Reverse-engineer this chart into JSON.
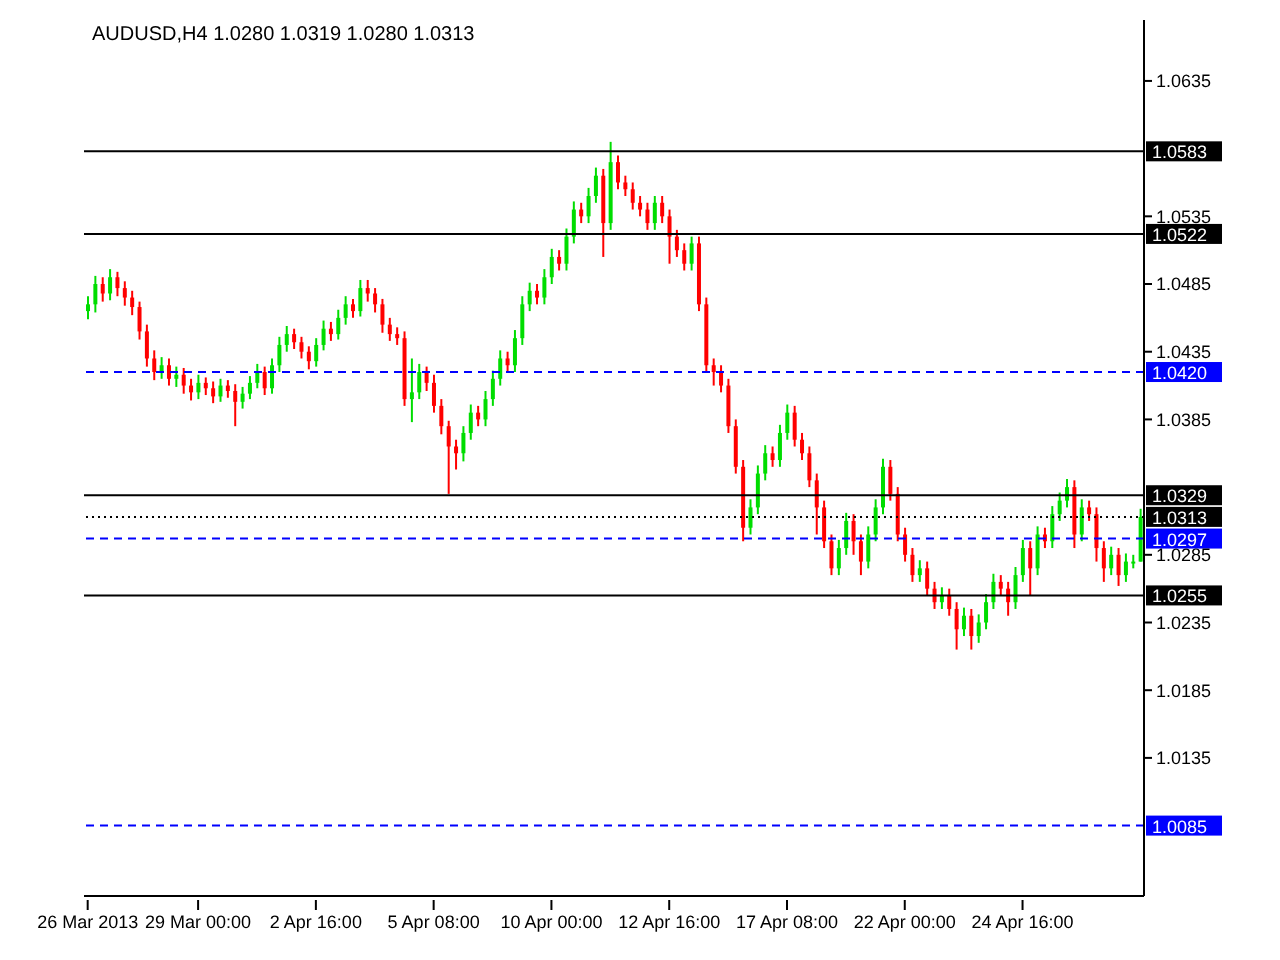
{
  "chart_data": {
    "type": "candlestick",
    "title": "AUDUSD,H4  1.0280 1.0319 1.0280 1.0313",
    "categories": [
      "26 Mar 2013",
      null,
      null,
      null,
      null,
      null,
      null,
      null,
      null,
      null,
      null,
      null,
      null,
      null,
      null,
      "29 Mar 00:00",
      null,
      null,
      null,
      null,
      null,
      null,
      null,
      null,
      null,
      null,
      null,
      null,
      null,
      null,
      null,
      "2 Apr 16:00",
      null,
      null,
      null,
      null,
      null,
      null,
      null,
      null,
      null,
      null,
      null,
      null,
      null,
      null,
      null,
      "5 Apr 08:00",
      null,
      null,
      null,
      null,
      null,
      null,
      null,
      null,
      null,
      null,
      null,
      null,
      null,
      null,
      null,
      "10 Apr 00:00",
      null,
      null,
      null,
      null,
      null,
      null,
      null,
      null,
      null,
      null,
      null,
      null,
      null,
      null,
      null,
      "12 Apr 16:00",
      null,
      null,
      null,
      null,
      null,
      null,
      null,
      null,
      null,
      null,
      null,
      null,
      null,
      null,
      null,
      "17 Apr 08:00",
      null,
      null,
      null,
      null,
      null,
      null,
      null,
      null,
      null,
      null,
      null,
      null,
      null,
      null,
      null,
      "22 Apr 00:00",
      null,
      null,
      null,
      null,
      null,
      null,
      null,
      null,
      null,
      null,
      null,
      null,
      null,
      null,
      null,
      "24 Apr 16:00",
      null,
      null,
      null,
      null,
      null,
      null,
      null,
      null,
      null,
      null,
      null,
      null,
      null,
      null,
      null,
      null
    ],
    "ohlc": [
      [
        1.0465,
        1.0476,
        1.0459,
        1.047
      ],
      [
        1.047,
        1.0491,
        1.0464,
        1.0485
      ],
      [
        1.0485,
        1.049,
        1.0472,
        1.0478
      ],
      [
        1.0478,
        1.0496,
        1.0473,
        1.049
      ],
      [
        1.049,
        1.0494,
        1.0476,
        1.0482
      ],
      [
        1.0482,
        1.0487,
        1.0469,
        1.0475
      ],
      [
        1.0475,
        1.048,
        1.0462,
        1.0468
      ],
      [
        1.0468,
        1.0472,
        1.0444,
        1.045
      ],
      [
        1.045,
        1.0455,
        1.0424,
        1.043
      ],
      [
        1.043,
        1.0436,
        1.0414,
        1.042
      ],
      [
        1.042,
        1.0431,
        1.0415,
        1.0425
      ],
      [
        1.0425,
        1.043,
        1.041,
        1.0415
      ],
      [
        1.0415,
        1.0424,
        1.0409,
        1.0418
      ],
      [
        1.0418,
        1.0423,
        1.0404,
        1.041
      ],
      [
        1.041,
        1.0415,
        1.0399,
        1.0405
      ],
      [
        1.0405,
        1.0418,
        1.04,
        1.0412
      ],
      [
        1.0412,
        1.0416,
        1.0403,
        1.0408
      ],
      [
        1.0408,
        1.0413,
        1.0397,
        1.0402
      ],
      [
        1.0402,
        1.0415,
        1.0398,
        1.041
      ],
      [
        1.041,
        1.0414,
        1.0401,
        1.0406
      ],
      [
        1.0406,
        1.0411,
        1.038,
        1.0398
      ],
      [
        1.0398,
        1.0409,
        1.0393,
        1.0404
      ],
      [
        1.0404,
        1.0417,
        1.04,
        1.0412
      ],
      [
        1.0412,
        1.0426,
        1.0408,
        1.042
      ],
      [
        1.042,
        1.0424,
        1.0403,
        1.0408
      ],
      [
        1.0408,
        1.043,
        1.0404,
        1.0425
      ],
      [
        1.0425,
        1.0446,
        1.042,
        1.044
      ],
      [
        1.044,
        1.0454,
        1.0435,
        1.0448
      ],
      [
        1.0448,
        1.0452,
        1.0437,
        1.0442
      ],
      [
        1.0442,
        1.0446,
        1.043,
        1.0435
      ],
      [
        1.0435,
        1.0439,
        1.0422,
        1.0428
      ],
      [
        1.0428,
        1.0445,
        1.0424,
        1.044
      ],
      [
        1.044,
        1.0458,
        1.0436,
        1.0452
      ],
      [
        1.0452,
        1.0457,
        1.0443,
        1.0448
      ],
      [
        1.0448,
        1.0466,
        1.0444,
        1.046
      ],
      [
        1.046,
        1.0476,
        1.0455,
        1.047
      ],
      [
        1.047,
        1.0474,
        1.046,
        1.0465
      ],
      [
        1.0465,
        1.0488,
        1.0461,
        1.0482
      ],
      [
        1.0482,
        1.0488,
        1.0472,
        1.0478
      ],
      [
        1.0478,
        1.0482,
        1.0464,
        1.047
      ],
      [
        1.047,
        1.0474,
        1.0449,
        1.0455
      ],
      [
        1.0455,
        1.046,
        1.0443,
        1.0448
      ],
      [
        1.0448,
        1.0453,
        1.044,
        1.0445
      ],
      [
        1.0445,
        1.045,
        1.0395,
        1.04
      ],
      [
        1.04,
        1.043,
        1.0383,
        1.0405
      ],
      [
        1.0405,
        1.0426,
        1.04,
        1.042
      ],
      [
        1.042,
        1.0424,
        1.0406,
        1.0412
      ],
      [
        1.0412,
        1.0418,
        1.039,
        1.0395
      ],
      [
        1.0395,
        1.04,
        1.0374,
        1.038
      ],
      [
        1.038,
        1.0384,
        1.033,
        1.0365
      ],
      [
        1.0365,
        1.037,
        1.0348,
        1.036
      ],
      [
        1.036,
        1.038,
        1.0354,
        1.0375
      ],
      [
        1.0375,
        1.0396,
        1.037,
        1.039
      ],
      [
        1.039,
        1.0395,
        1.038,
        1.0385
      ],
      [
        1.0385,
        1.0406,
        1.038,
        1.04
      ],
      [
        1.04,
        1.0421,
        1.0395,
        1.0415
      ],
      [
        1.0415,
        1.0436,
        1.041,
        1.043
      ],
      [
        1.043,
        1.0435,
        1.042,
        1.0425
      ],
      [
        1.0425,
        1.0451,
        1.042,
        1.0445
      ],
      [
        1.0445,
        1.0476,
        1.044,
        1.047
      ],
      [
        1.047,
        1.0486,
        1.0465,
        1.048
      ],
      [
        1.048,
        1.0485,
        1.047,
        1.0475
      ],
      [
        1.0475,
        1.0496,
        1.047,
        1.049
      ],
      [
        1.049,
        1.0511,
        1.0485,
        1.0505
      ],
      [
        1.0505,
        1.051,
        1.0495,
        1.05
      ],
      [
        1.05,
        1.0526,
        1.0495,
        1.052
      ],
      [
        1.052,
        1.0546,
        1.0515,
        1.054
      ],
      [
        1.054,
        1.0545,
        1.053,
        1.0535
      ],
      [
        1.0535,
        1.0556,
        1.053,
        1.055
      ],
      [
        1.055,
        1.0571,
        1.0545,
        1.0565
      ],
      [
        1.0565,
        1.057,
        1.0505,
        1.053
      ],
      [
        1.053,
        1.059,
        1.0525,
        1.0575
      ],
      [
        1.0575,
        1.058,
        1.0555,
        1.056
      ],
      [
        1.056,
        1.0565,
        1.055,
        1.0555
      ],
      [
        1.0555,
        1.056,
        1.054,
        1.0545
      ],
      [
        1.0545,
        1.055,
        1.0535,
        1.054
      ],
      [
        1.054,
        1.0545,
        1.0525,
        1.053
      ],
      [
        1.053,
        1.055,
        1.0525,
        1.0545
      ],
      [
        1.0545,
        1.055,
        1.053,
        1.0535
      ],
      [
        1.0535,
        1.054,
        1.05,
        1.052
      ],
      [
        1.052,
        1.0525,
        1.0505,
        1.051
      ],
      [
        1.051,
        1.0515,
        1.0495,
        1.05
      ],
      [
        1.05,
        1.052,
        1.0495,
        1.0515
      ],
      [
        1.0515,
        1.052,
        1.0465,
        1.047
      ],
      [
        1.047,
        1.0475,
        1.042,
        1.0425
      ],
      [
        1.0425,
        1.043,
        1.041,
        1.042
      ],
      [
        1.042,
        1.0425,
        1.0405,
        1.041
      ],
      [
        1.041,
        1.0415,
        1.0375,
        1.038
      ],
      [
        1.038,
        1.0385,
        1.0345,
        1.035
      ],
      [
        1.035,
        1.0355,
        1.0295,
        1.0305
      ],
      [
        1.0305,
        1.0326,
        1.03,
        1.032
      ],
      [
        1.032,
        1.0351,
        1.0315,
        1.0345
      ],
      [
        1.0345,
        1.0366,
        1.034,
        1.036
      ],
      [
        1.036,
        1.0365,
        1.035,
        1.0355
      ],
      [
        1.0355,
        1.0381,
        1.035,
        1.0375
      ],
      [
        1.0375,
        1.0396,
        1.037,
        1.039
      ],
      [
        1.039,
        1.0395,
        1.0365,
        1.037
      ],
      [
        1.037,
        1.0375,
        1.0355,
        1.036
      ],
      [
        1.036,
        1.0365,
        1.0335,
        1.034
      ],
      [
        1.034,
        1.0345,
        1.03,
        1.032
      ],
      [
        1.032,
        1.0325,
        1.029,
        1.0295
      ],
      [
        1.0295,
        1.03,
        1.027,
        1.0275
      ],
      [
        1.0275,
        1.0296,
        1.027,
        1.029
      ],
      [
        1.029,
        1.0316,
        1.0285,
        1.031
      ],
      [
        1.031,
        1.0315,
        1.0285,
        1.0295
      ],
      [
        1.0295,
        1.03,
        1.027,
        1.028
      ],
      [
        1.028,
        1.0306,
        1.0275,
        1.03
      ],
      [
        1.03,
        1.0326,
        1.0295,
        1.032
      ],
      [
        1.032,
        1.0356,
        1.0315,
        1.035
      ],
      [
        1.035,
        1.0355,
        1.0325,
        1.033
      ],
      [
        1.033,
        1.0335,
        1.0295,
        1.03
      ],
      [
        1.03,
        1.0305,
        1.028,
        1.0285
      ],
      [
        1.0285,
        1.029,
        1.0265,
        1.027
      ],
      [
        1.027,
        1.0281,
        1.0265,
        1.0275
      ],
      [
        1.0275,
        1.028,
        1.0255,
        1.026
      ],
      [
        1.026,
        1.0265,
        1.0245,
        1.025
      ],
      [
        1.025,
        1.0261,
        1.0245,
        1.0255
      ],
      [
        1.0255,
        1.026,
        1.024,
        1.0245
      ],
      [
        1.0245,
        1.025,
        1.0215,
        1.023
      ],
      [
        1.023,
        1.0246,
        1.0225,
        1.024
      ],
      [
        1.024,
        1.0245,
        1.0215,
        1.0225
      ],
      [
        1.0225,
        1.0241,
        1.022,
        1.0235
      ],
      [
        1.0235,
        1.0256,
        1.023,
        1.025
      ],
      [
        1.025,
        1.0271,
        1.0245,
        1.0265
      ],
      [
        1.0265,
        1.027,
        1.0255,
        1.026
      ],
      [
        1.026,
        1.0265,
        1.024,
        1.025
      ],
      [
        1.025,
        1.0276,
        1.0245,
        1.027
      ],
      [
        1.027,
        1.0296,
        1.0265,
        1.029
      ],
      [
        1.029,
        1.0295,
        1.0255,
        1.0275
      ],
      [
        1.0275,
        1.0306,
        1.027,
        1.03
      ],
      [
        1.03,
        1.0305,
        1.029,
        1.0295
      ],
      [
        1.0295,
        1.0321,
        1.029,
        1.0315
      ],
      [
        1.0315,
        1.0331,
        1.031,
        1.0325
      ],
      [
        1.0325,
        1.0341,
        1.032,
        1.0335
      ],
      [
        1.0335,
        1.034,
        1.029,
        1.03
      ],
      [
        1.03,
        1.0326,
        1.0295,
        1.032
      ],
      [
        1.032,
        1.0325,
        1.031,
        1.0315
      ],
      [
        1.0315,
        1.032,
        1.028,
        1.029
      ],
      [
        1.029,
        1.0295,
        1.0265,
        1.0275
      ],
      [
        1.0275,
        1.0291,
        1.027,
        1.0285
      ],
      [
        1.0285,
        1.029,
        1.0262,
        1.027
      ],
      [
        1.027,
        1.0286,
        1.0265,
        1.028
      ],
      [
        1.028,
        1.0285,
        1.0275,
        1.028
      ],
      [
        1.028,
        1.0319,
        1.028,
        1.0313
      ]
    ],
    "ylim": [
      1.0033,
      1.068
    ],
    "yticks": [
      1.0635,
      1.0535,
      1.0485,
      1.0435,
      1.0385,
      1.0285,
      1.0235,
      1.0185,
      1.0135
    ],
    "ref_lines": [
      {
        "axis": "y",
        "value": 1.0583,
        "label": "1.0583",
        "color": "#000000",
        "line_style": "solid"
      },
      {
        "axis": "y",
        "value": 1.0522,
        "label": "1.0522",
        "color": "#000000",
        "line_style": "solid"
      },
      {
        "axis": "y",
        "value": 1.042,
        "label": "1.0420",
        "color": "#0000ff",
        "line_style": "dashed"
      },
      {
        "axis": "y",
        "value": 1.0329,
        "label": "1.0329",
        "color": "#000000",
        "line_style": "solid"
      },
      {
        "axis": "y",
        "value": 1.0313,
        "label": "1.0313",
        "color": "#000000",
        "line_style": "dotted"
      },
      {
        "axis": "y",
        "value": 1.0297,
        "label": "1.0297",
        "color": "#0000ff",
        "line_style": "dashed"
      },
      {
        "axis": "y",
        "value": 1.0255,
        "label": "1.0255",
        "color": "#000000",
        "line_style": "solid"
      },
      {
        "axis": "y",
        "value": 1.0085,
        "label": "1.0085",
        "color": "#0000ff",
        "line_style": "dashed"
      }
    ]
  }
}
